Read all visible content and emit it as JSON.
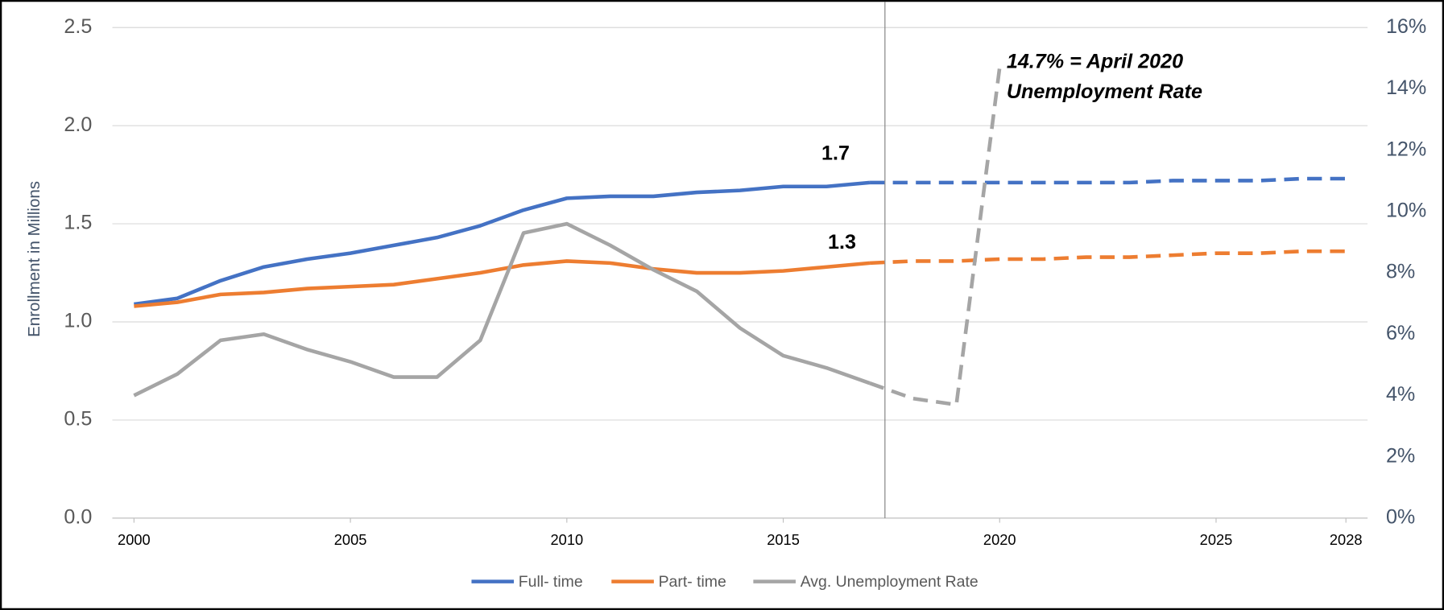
{
  "chart_data": {
    "type": "line",
    "x": [
      2000,
      2001,
      2002,
      2003,
      2004,
      2005,
      2006,
      2007,
      2008,
      2009,
      2010,
      2011,
      2012,
      2013,
      2014,
      2015,
      2016,
      2017,
      2018,
      2019,
      2020,
      2021,
      2022,
      2023,
      2024,
      2025,
      2026,
      2027,
      2028
    ],
    "xlim": [
      1999.5,
      2028.5
    ],
    "xticks": [
      2000,
      2005,
      2010,
      2015,
      2020,
      2025,
      2028
    ],
    "ylabel": "Enrollment in Millions",
    "ylim": [
      0,
      2.5
    ],
    "yticks": [
      {
        "value": 0,
        "label": "0.0"
      },
      0.5,
      {
        "value": 1,
        "label": "1.0"
      },
      1.5,
      {
        "value": 2,
        "label": "2.0"
      },
      2.5
    ],
    "y2lim": [
      0,
      16
    ],
    "y2ticks": [
      {
        "value": 0,
        "label": "0%"
      },
      {
        "value": 2,
        "label": "2%"
      },
      {
        "value": 4,
        "label": "4%"
      },
      {
        "value": 6,
        "label": "6%"
      },
      {
        "value": 8,
        "label": "8%"
      },
      {
        "value": 10,
        "label": "10%"
      },
      {
        "value": 12,
        "label": "12%"
      },
      {
        "value": 14,
        "label": "14%"
      },
      {
        "value": 16,
        "label": "16%"
      }
    ],
    "grid": true,
    "projection_from_x": 2017,
    "reference_line_x": 2017.35,
    "series": [
      {
        "name": "Full- time",
        "color": "#4472c4",
        "values": [
          1.09,
          1.12,
          1.21,
          1.28,
          1.32,
          1.35,
          1.39,
          1.43,
          1.49,
          1.57,
          1.63,
          1.64,
          1.64,
          1.66,
          1.67,
          1.69,
          1.69,
          1.71,
          1.71,
          1.71,
          1.71,
          1.71,
          1.71,
          1.71,
          1.72,
          1.72,
          1.72,
          1.73,
          1.73
        ]
      },
      {
        "name": "Part- time",
        "color": "#ed7d31",
        "values": [
          1.08,
          1.1,
          1.14,
          1.15,
          1.17,
          1.18,
          1.19,
          1.22,
          1.25,
          1.29,
          1.31,
          1.3,
          1.27,
          1.25,
          1.25,
          1.26,
          1.28,
          1.3,
          1.31,
          1.31,
          1.32,
          1.32,
          1.33,
          1.33,
          1.34,
          1.35,
          1.35,
          1.36,
          1.36
        ]
      },
      {
        "name": "Avg. Unemployment Rate",
        "color": "#a5a5a5",
        "axis": "y2",
        "values": [
          4.0,
          4.7,
          5.8,
          6.0,
          5.5,
          5.1,
          4.6,
          4.6,
          5.8,
          9.3,
          9.6,
          8.9,
          8.1,
          7.4,
          6.2,
          5.3,
          4.9,
          4.4,
          3.9,
          3.7,
          14.7,
          null,
          null,
          null,
          null,
          null,
          null,
          null,
          null
        ]
      }
    ],
    "annotations": [
      "1.7",
      "1.3",
      "14.7% = April 2020",
      "Unemployment Rate"
    ]
  }
}
